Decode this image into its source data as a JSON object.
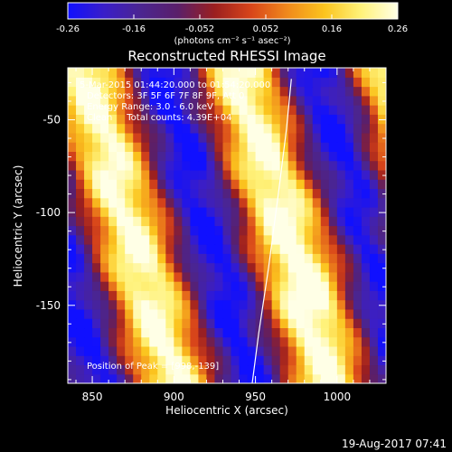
{
  "colors": {
    "background": "#000000",
    "foreground": "#ffffff",
    "colormap": [
      "#1010ff",
      "#3a1ec8",
      "#4b2590",
      "#5a1f6a",
      "#9b1f1f",
      "#d8451a",
      "#f08a1c",
      "#fbc41e",
      "#fff27a",
      "#ffffe6"
    ]
  },
  "colorbar": {
    "tick_labels": [
      "-0.26",
      "-0.16",
      "-0.052",
      "0.052",
      "0.16",
      "0.26"
    ],
    "units_label": "(photons cm⁻² s⁻¹ asec⁻²)"
  },
  "footer": {
    "date_stamp": "19-Aug-2017 07:41"
  },
  "chart_data": {
    "type": "heatmap",
    "title": "Reconstructed RHESSI Image",
    "xlabel": "Heliocentric X (arcsec)",
    "ylabel": "Heliocentric Y (arcsec)",
    "xlim": [
      835,
      1030
    ],
    "ylim": [
      -192,
      -22
    ],
    "x_ticks": [
      850,
      900,
      950,
      1000
    ],
    "y_ticks": [
      -50,
      -100,
      -150
    ],
    "value_range": [
      -0.26,
      0.26
    ],
    "annotations": [
      "5-Mar-2015 01:44:20.000 to 01:54:20.000",
      "Detectors: 3F 5F 6F 7F 8F 9F, Att 0",
      "Energy Range: 3.0 - 6.0 keV",
      "Clean     Total counts: 4.39E+04"
    ],
    "position_label": "Position of Peak = [998,-139]",
    "pattern": {
      "description_of_bands": "diagonal fringes",
      "band_period_arcsec": 95,
      "band_tilt_x_per_y": -0.33,
      "bright_band_centers_x_at_y_minus_100": [
        870,
        985
      ],
      "peak": [
        998,
        -139
      ]
    },
    "limb_curve": {
      "x": [
        948,
        952,
        958,
        964,
        969,
        972
      ],
      "y": [
        -192,
        -165,
        -130,
        -90,
        -55,
        -28
      ]
    }
  }
}
